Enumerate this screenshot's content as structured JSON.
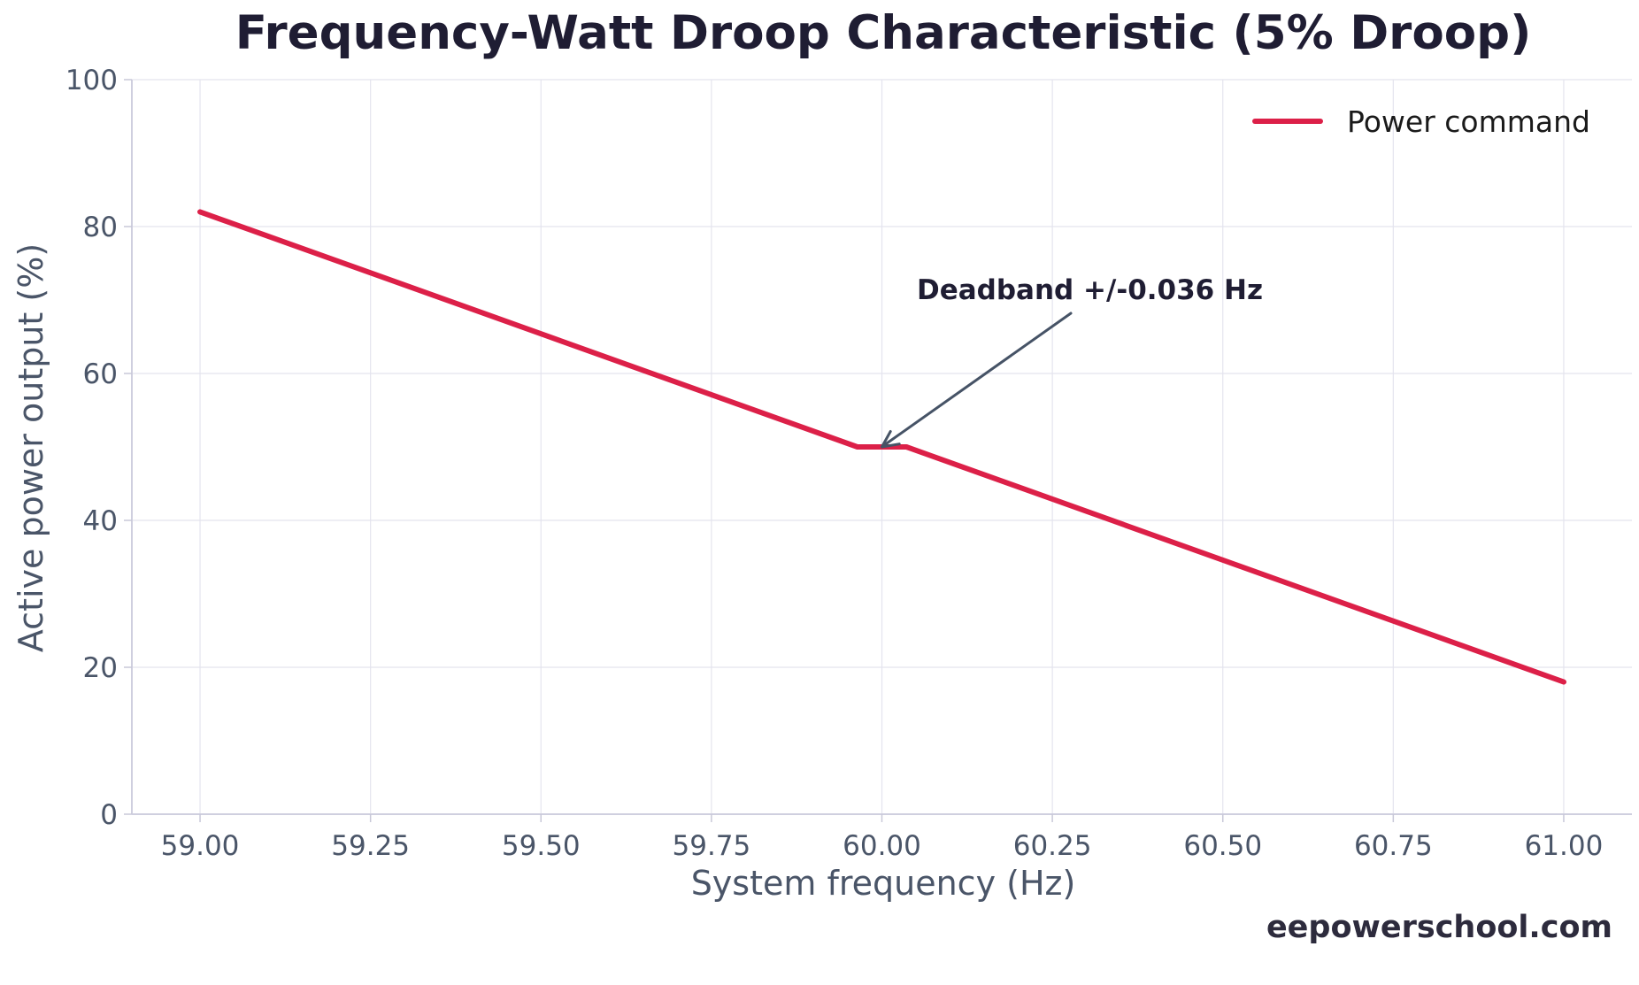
{
  "chart_data": {
    "type": "line",
    "title": "Frequency-Watt Droop Characteristic (5% Droop)",
    "xlabel": "System frequency (Hz)",
    "ylabel": "Active power output (%)",
    "xlim": [
      58.9,
      61.1
    ],
    "ylim": [
      0,
      100
    ],
    "x_ticks": [
      59.0,
      59.25,
      59.5,
      59.75,
      60.0,
      60.25,
      60.5,
      60.75,
      61.0
    ],
    "x_tick_labels": [
      "59.00",
      "59.25",
      "59.50",
      "59.75",
      "60.00",
      "60.25",
      "60.50",
      "60.75",
      "61.00"
    ],
    "y_ticks": [
      0,
      20,
      40,
      60,
      80,
      100
    ],
    "y_tick_labels": [
      "0",
      "20",
      "40",
      "60",
      "80",
      "100"
    ],
    "grid": true,
    "legend_position": "top-right",
    "series": [
      {
        "name": "Power command",
        "color": "#dc2048",
        "x": [
          59.0,
          59.964,
          60.036,
          61.0
        ],
        "y": [
          82.0,
          50.0,
          50.0,
          18.0
        ]
      }
    ],
    "annotations": [
      {
        "text": "Deadband +/-0.036 Hz",
        "point": [
          60.0,
          50.0
        ],
        "text_anchor_at": [
          60.05,
          70.0
        ],
        "arrow_color": "#465366"
      }
    ]
  },
  "footer": "eepowerschool.com"
}
